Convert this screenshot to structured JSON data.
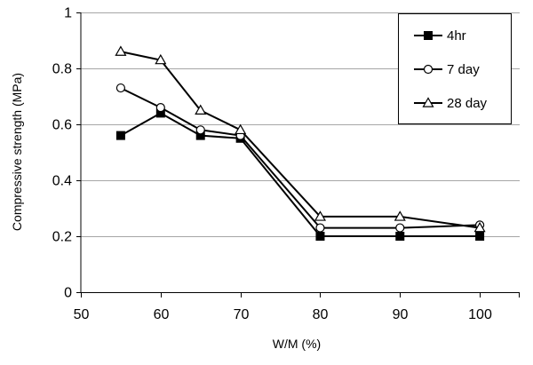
{
  "chart_data": {
    "type": "line",
    "title": "",
    "xlabel": "W/M (%)",
    "ylabel": "Compressive strength (MPa)",
    "xlim": [
      50,
      105
    ],
    "ylim": [
      0,
      1
    ],
    "xticks": [
      50,
      60,
      70,
      80,
      90,
      100
    ],
    "yticks": [
      0,
      0.2,
      0.4,
      0.6,
      0.8,
      1
    ],
    "x": [
      55,
      60,
      65,
      70,
      80,
      90,
      100
    ],
    "grid": "horizontal",
    "legend_position": "top-right",
    "series": [
      {
        "name": "4hr",
        "marker": "filled-square",
        "values": [
          0.56,
          0.64,
          0.56,
          0.55,
          0.2,
          0.2,
          0.2
        ]
      },
      {
        "name": "7 day",
        "marker": "open-circle",
        "values": [
          0.73,
          0.66,
          0.58,
          0.56,
          0.23,
          0.23,
          0.24
        ]
      },
      {
        "name": "28 day",
        "marker": "open-triangle",
        "values": [
          0.86,
          0.83,
          0.65,
          0.58,
          0.27,
          0.27,
          0.23
        ]
      }
    ]
  },
  "colors": {
    "line": "#000000",
    "grid": "#a6a6a6",
    "background": "#ffffff"
  }
}
